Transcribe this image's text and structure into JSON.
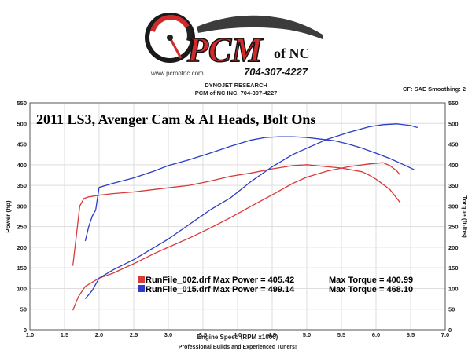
{
  "logo": {
    "brand": "PCM",
    "brand_suffix": "of NC",
    "phone": "704-307-4227",
    "url": "www.pcmofnc.com"
  },
  "header": {
    "line1": "DYNOJET RESEARCH",
    "line2": "PCM of NC INC. 704-307-4227",
    "right": "CF: SAE  Smoothing: 2"
  },
  "footer": "Professional Builds and Experienced Tuners!",
  "colors": {
    "red": "#d83a3a",
    "blue": "#2b3cc8",
    "grid": "#dddddd"
  },
  "chart_data": {
    "type": "line",
    "title": "2011 LS3, Avenger Cam & AI Heads, Bolt Ons",
    "xlabel": "Engine Speed (RPM x1000)",
    "ylabel_left": "Power (hp)",
    "ylabel_right": "Torque (ft-lbs)",
    "xlim": [
      1.0,
      7.0
    ],
    "ylim": [
      0,
      550
    ],
    "x_ticks": [
      "1.0",
      "1.5",
      "2.0",
      "2.5",
      "3.0",
      "3.5",
      "4.0",
      "4.5",
      "5.0",
      "5.5",
      "6.0",
      "6.5",
      "7.0"
    ],
    "y_ticks": [
      "0",
      "50",
      "100",
      "150",
      "200",
      "250",
      "300",
      "350",
      "400",
      "450",
      "500",
      "550"
    ],
    "grid": true,
    "legend": [
      {
        "color": "#d83a3a",
        "label": "RunFile_002.drf Max Power = 405.42",
        "torque": "Max Torque = 400.99"
      },
      {
        "color": "#2b3cc8",
        "label": "RunFile_015.drf Max Power = 499.14",
        "torque": "Max Torque = 468.10"
      }
    ],
    "series": [
      {
        "name": "RunFile_002.drf",
        "quantity": "power",
        "color": "#d83a3a",
        "x": [
          1.62,
          1.7,
          1.8,
          2.0,
          2.2,
          2.5,
          2.8,
          3.0,
          3.3,
          3.6,
          3.9,
          4.2,
          4.5,
          4.8,
          5.0,
          5.3,
          5.6,
          5.9,
          6.1,
          6.2,
          6.3,
          6.35
        ],
        "y": [
          47,
          80,
          105,
          125,
          137,
          160,
          185,
          200,
          222,
          246,
          272,
          300,
          327,
          355,
          370,
          385,
          395,
          402,
          405,
          398,
          385,
          375
        ]
      },
      {
        "name": "RunFile_002.drf",
        "quantity": "torque",
        "color": "#d83a3a",
        "x": [
          1.62,
          1.68,
          1.72,
          1.78,
          1.85,
          2.0,
          2.2,
          2.5,
          2.8,
          3.0,
          3.3,
          3.6,
          3.9,
          4.2,
          4.5,
          4.8,
          5.0,
          5.3,
          5.5,
          5.8,
          5.9,
          6.0,
          6.2,
          6.35
        ],
        "y": [
          155,
          240,
          300,
          318,
          322,
          326,
          330,
          334,
          340,
          344,
          350,
          360,
          372,
          380,
          390,
          398,
          400,
          395,
          392,
          383,
          375,
          365,
          340,
          308
        ]
      },
      {
        "name": "RunFile_015.drf",
        "quantity": "power",
        "color": "#2b3cc8",
        "x": [
          1.8,
          1.9,
          2.0,
          2.2,
          2.5,
          2.8,
          3.0,
          3.3,
          3.6,
          3.9,
          4.2,
          4.5,
          4.8,
          5.0,
          5.3,
          5.6,
          5.9,
          6.1,
          6.3,
          6.5,
          6.6
        ],
        "y": [
          75,
          95,
          125,
          145,
          170,
          200,
          220,
          255,
          290,
          320,
          360,
          395,
          425,
          440,
          462,
          478,
          492,
          497,
          499,
          495,
          490
        ]
      },
      {
        "name": "RunFile_015.drf",
        "quantity": "torque",
        "color": "#2b3cc8",
        "x": [
          1.8,
          1.85,
          1.9,
          1.95,
          2.0,
          2.2,
          2.5,
          2.8,
          3.0,
          3.3,
          3.6,
          3.9,
          4.2,
          4.4,
          4.6,
          4.8,
          5.0,
          5.2,
          5.4,
          5.6,
          5.8,
          6.0,
          6.2,
          6.4,
          6.55
        ],
        "y": [
          215,
          250,
          275,
          290,
          345,
          355,
          368,
          385,
          398,
          412,
          428,
          445,
          460,
          466,
          468,
          468,
          466,
          462,
          458,
          450,
          440,
          428,
          415,
          400,
          388
        ]
      }
    ]
  }
}
